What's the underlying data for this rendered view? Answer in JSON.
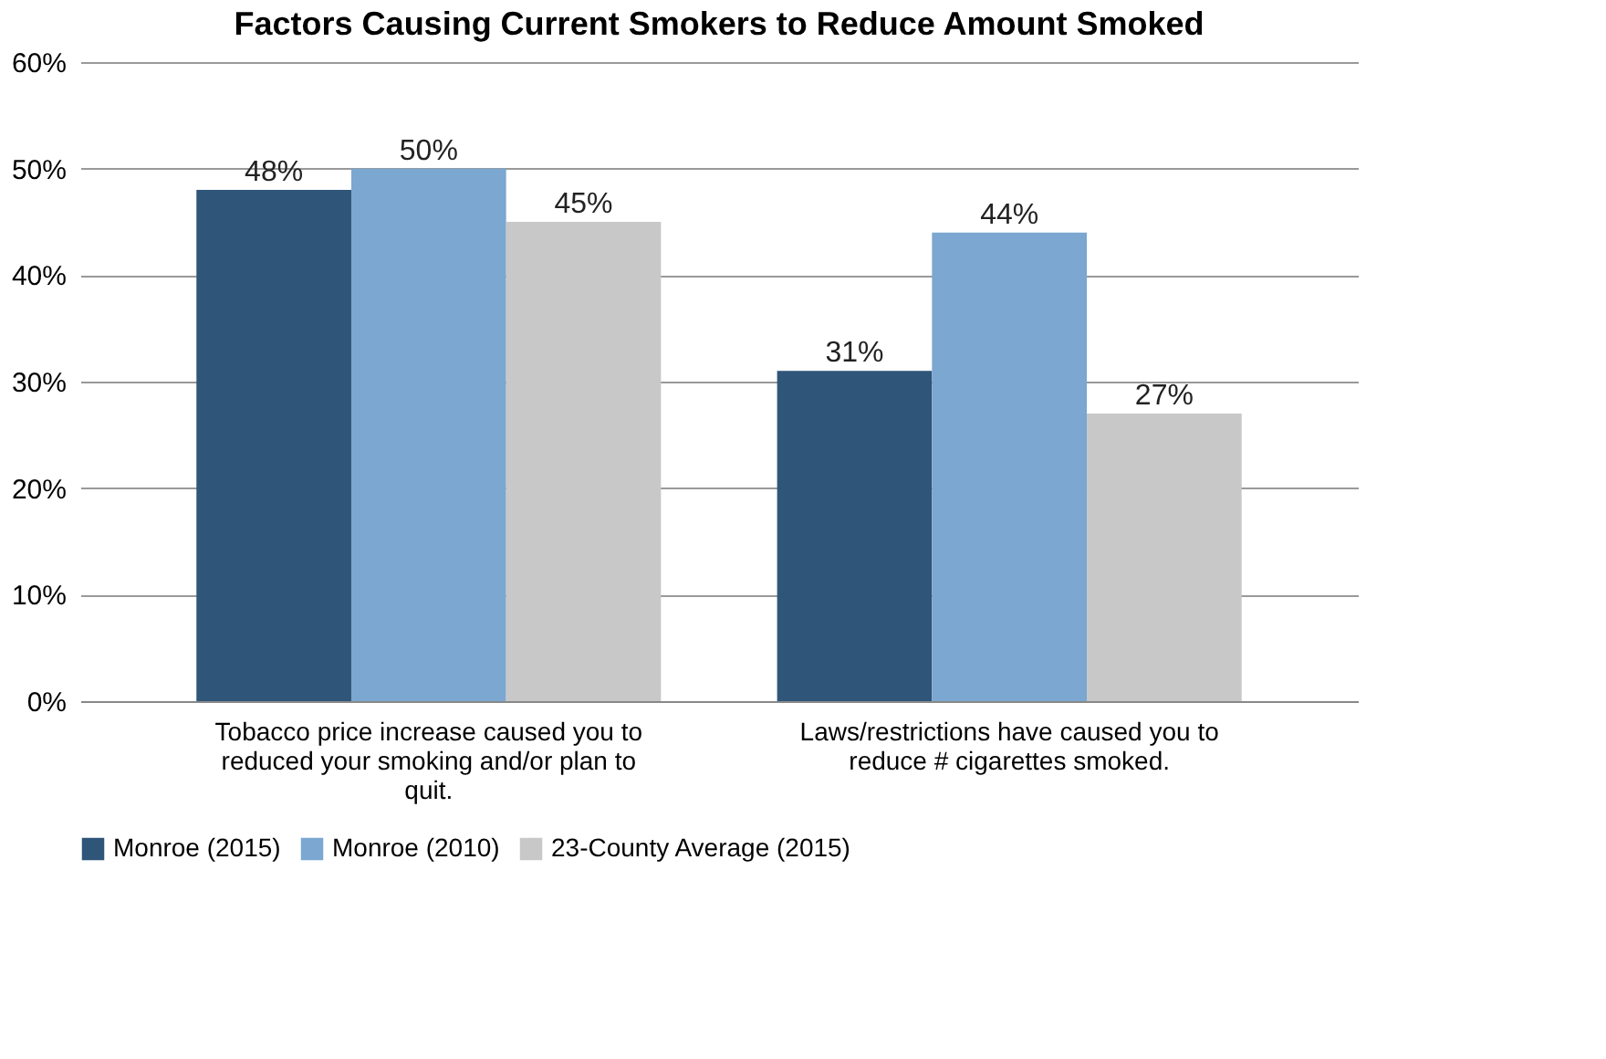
{
  "chart_data": {
    "type": "bar",
    "title": "Factors Causing Current Smokers to Reduce Amount Smoked",
    "categories": [
      "Tobacco price increase caused you to reduced your smoking and/or plan to quit.",
      "Laws/restrictions have caused you to reduce # cigarettes smoked."
    ],
    "series": [
      {
        "name": "Monroe (2015)",
        "color": "#2f5579",
        "values": [
          48,
          31
        ],
        "value_labels": [
          "48%",
          "31%"
        ]
      },
      {
        "name": "Monroe (2010)",
        "color": "#7ba7d1",
        "values": [
          50,
          44
        ],
        "value_labels": [
          "50%",
          "44%"
        ]
      },
      {
        "name": "23-County Average (2015)",
        "color": "#c8c8c8",
        "values": [
          45,
          27
        ],
        "value_labels": [
          "45%",
          "27%"
        ]
      }
    ],
    "ylim": [
      0,
      60
    ],
    "yticks": [
      {
        "value": 0,
        "label": "0%"
      },
      {
        "value": 10,
        "label": "10%"
      },
      {
        "value": 20,
        "label": "20%"
      },
      {
        "value": 30,
        "label": "30%"
      },
      {
        "value": 40,
        "label": "40%"
      },
      {
        "value": 50,
        "label": "50%"
      },
      {
        "value": 60,
        "label": "60%"
      }
    ],
    "grid": "y",
    "legend": "bottom"
  }
}
